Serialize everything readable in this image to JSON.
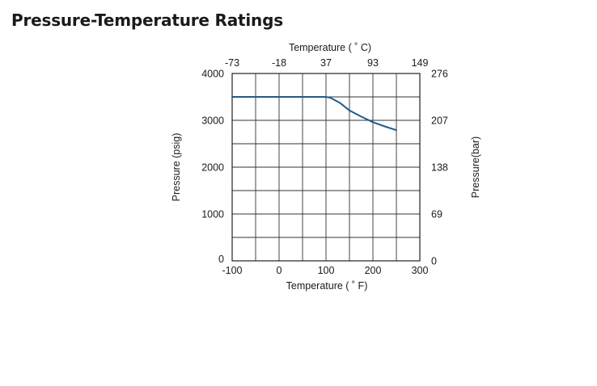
{
  "page": {
    "title": "Pressure-Temperature Ratings"
  },
  "chart_data": {
    "type": "line",
    "title": "",
    "xlabel": "Temperature (  ˚  F)",
    "x2label": "Temperature (  ˚  C)",
    "ylabel": "Pressure (psig)",
    "y2label": "Pressure(bar)",
    "xlim": [
      -100,
      300
    ],
    "ylim": [
      0,
      4000
    ],
    "x_ticks": [
      -100,
      0,
      100,
      200,
      300
    ],
    "x_minor_ticks": [
      -50,
      50,
      150,
      250
    ],
    "y_ticks": [
      0,
      1000,
      2000,
      3000,
      4000
    ],
    "y_minor_ticks": [
      500,
      1500,
      2500,
      3500
    ],
    "x2_ticks": [
      {
        "value": -100,
        "label": "-73"
      },
      {
        "value": 0,
        "label": "-18"
      },
      {
        "value": 100,
        "label": "37"
      },
      {
        "value": 200,
        "label": "93"
      },
      {
        "value": 300,
        "label": "149"
      }
    ],
    "y2_ticks": [
      {
        "value": 0,
        "label": "0"
      },
      {
        "value": 1000,
        "label": "69"
      },
      {
        "value": 2000,
        "label": "138"
      },
      {
        "value": 3000,
        "label": "207"
      },
      {
        "value": 4000,
        "label": "276"
      }
    ],
    "grid": true,
    "line_color": "#1f5a8c",
    "series": [
      {
        "name": "",
        "x": [
          -100,
          0,
          100,
          110,
          130,
          150,
          175,
          200,
          225,
          250
        ],
        "y": [
          3500,
          3500,
          3500,
          3480,
          3370,
          3210,
          3080,
          2960,
          2870,
          2790
        ]
      }
    ]
  }
}
